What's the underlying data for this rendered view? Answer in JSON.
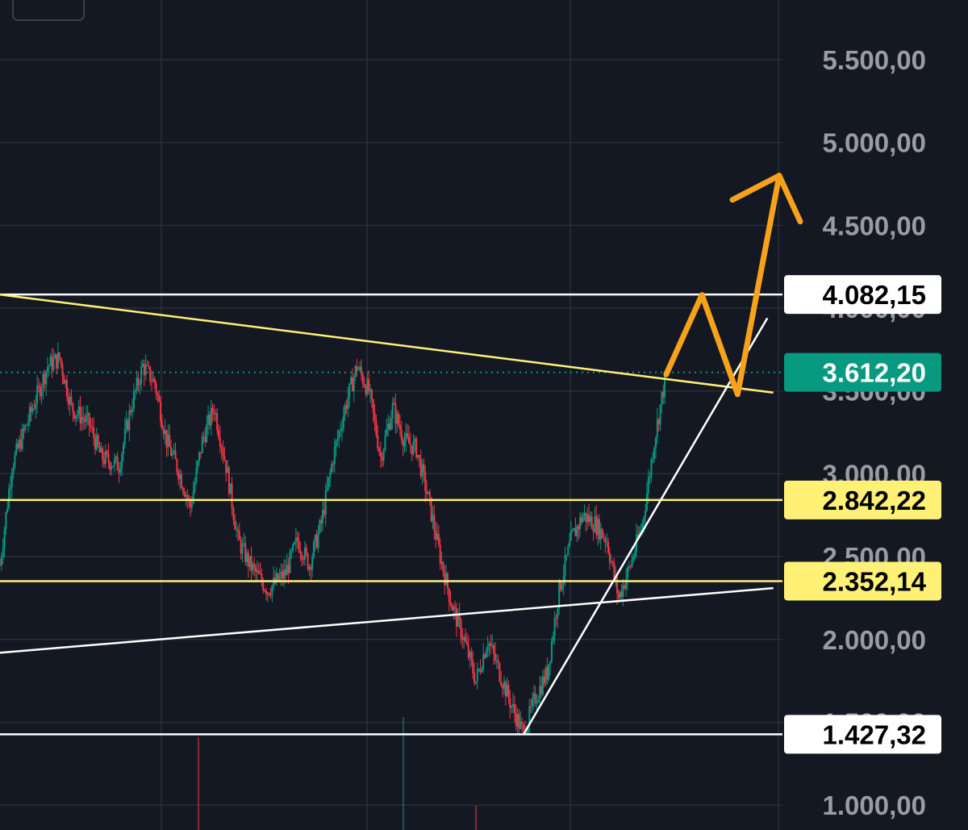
{
  "chart_data": {
    "type": "candlestick",
    "y_axis": {
      "side": "right",
      "min": 850,
      "max": 5860,
      "ticks": [
        "1.000,00",
        "1.500,00",
        "2.000,00",
        "2.500,00",
        "3.000,00",
        "3.500,00",
        "4.000,00",
        "4.500,00",
        "5.000,00",
        "5.500,00"
      ],
      "tick_values": [
        1000,
        1500,
        2000,
        2500,
        3000,
        3500,
        4000,
        4500,
        5000,
        5500
      ]
    },
    "grid": true,
    "price_series_approx": [
      [
        0,
        2450
      ],
      [
        4,
        3050
      ],
      [
        10,
        3350
      ],
      [
        16,
        3650
      ],
      [
        20,
        3700
      ],
      [
        24,
        3400
      ],
      [
        30,
        3300
      ],
      [
        34,
        3100
      ],
      [
        40,
        3050
      ],
      [
        44,
        3400
      ],
      [
        48,
        3650
      ],
      [
        52,
        3550
      ],
      [
        56,
        3200
      ],
      [
        60,
        3020
      ],
      [
        64,
        2800
      ],
      [
        68,
        3200
      ],
      [
        72,
        3400
      ],
      [
        76,
        3050
      ],
      [
        80,
        2600
      ],
      [
        84,
        2450
      ],
      [
        90,
        2300
      ],
      [
        96,
        2400
      ],
      [
        100,
        2600
      ],
      [
        104,
        2450
      ],
      [
        108,
        2700
      ],
      [
        112,
        3100
      ],
      [
        116,
        3400
      ],
      [
        120,
        3650
      ],
      [
        124,
        3500
      ],
      [
        128,
        3100
      ],
      [
        132,
        3400
      ],
      [
        136,
        3200
      ],
      [
        140,
        3150
      ],
      [
        144,
        2850
      ],
      [
        148,
        2500
      ],
      [
        152,
        2200
      ],
      [
        156,
        2000
      ],
      [
        160,
        1750
      ],
      [
        164,
        2000
      ],
      [
        168,
        1800
      ],
      [
        172,
        1600
      ],
      [
        176,
        1427
      ],
      [
        180,
        1650
      ],
      [
        184,
        1800
      ],
      [
        188,
        2300
      ],
      [
        192,
        2600
      ],
      [
        196,
        2750
      ],
      [
        200,
        2700
      ],
      [
        204,
        2600
      ],
      [
        208,
        2250
      ],
      [
        212,
        2450
      ],
      [
        216,
        2700
      ],
      [
        220,
        3200
      ],
      [
        224,
        3612
      ]
    ],
    "current_price": {
      "label": "3.612,20",
      "value": 3612.2,
      "color": "#089981"
    },
    "levels": [
      {
        "label": "4.082,15",
        "value": 4082.15,
        "color": "#ffffff",
        "label_bg": "#ffffff",
        "label_color": "#000000"
      },
      {
        "label": "2.842,22",
        "value": 2842.22,
        "color": "#fff176",
        "label_bg": "#fff176",
        "label_color": "#000000"
      },
      {
        "label": "2.352,14",
        "value": 2352.14,
        "color": "#fff176",
        "label_bg": "#fff176",
        "label_color": "#000000"
      },
      {
        "label": "1.427,32",
        "value": 1427.32,
        "color": "#ffffff",
        "label_bg": "#ffffff",
        "label_color": "#000000"
      }
    ],
    "trendlines": [
      {
        "name": "descending-resistance",
        "color": "#fff176",
        "from": [
          0,
          4082
        ],
        "to": [
          260,
          3490
        ]
      },
      {
        "name": "long-support",
        "color": "#ffffff",
        "from": [
          0,
          1920
        ],
        "to": [
          260,
          2310
        ]
      },
      {
        "name": "steep-support",
        "color": "#ffffff",
        "from": [
          176,
          1427
        ],
        "to": [
          258,
          3940
        ]
      }
    ],
    "projection": {
      "color": "#f7a21b",
      "path": [
        [
          224,
          3600
        ],
        [
          236,
          4080
        ],
        [
          248,
          3480
        ],
        [
          262,
          4800
        ]
      ]
    },
    "colors": {
      "up": "#089981",
      "down": "#f23645",
      "background": "#141823",
      "grid": "#2a2e39",
      "axis_text": "#9a9ca4"
    }
  }
}
